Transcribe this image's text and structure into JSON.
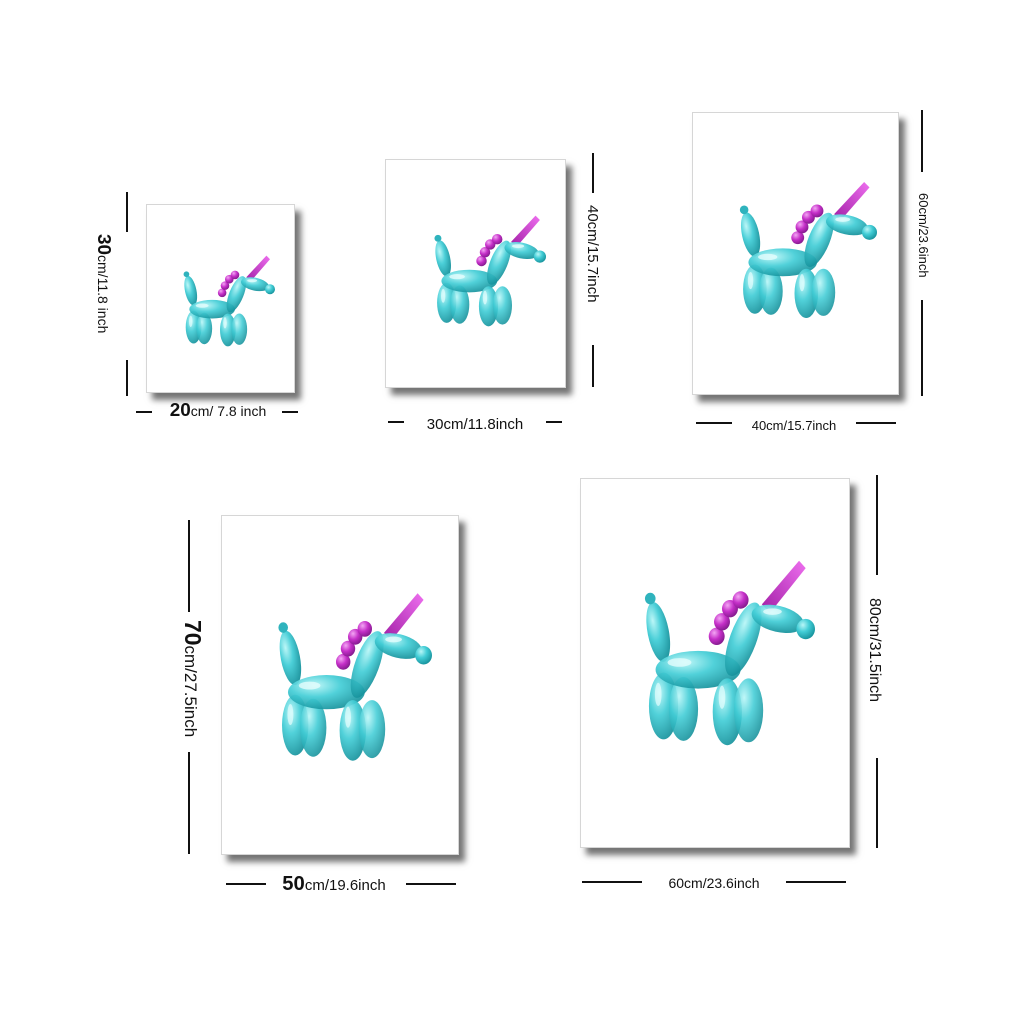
{
  "colors": {
    "balloon": "#3ec9d2",
    "balloon_dark": "#178f99",
    "balloon_light": "#9ff0f2",
    "mane": "#c02cc4",
    "horn": "#d63ad7",
    "line": "#111111"
  },
  "prints": [
    {
      "width": {
        "num": "20",
        "rest": "cm/ 7.8 inch"
      },
      "height": {
        "num": "30",
        "rest": "cm/11.8 inch"
      }
    },
    {
      "width": {
        "num": "",
        "rest": "30cm/11.8inch"
      },
      "height": {
        "num": "",
        "rest": "40cm/15.7inch"
      }
    },
    {
      "width": {
        "num": "",
        "rest": "40cm/15.7inch"
      },
      "height": {
        "num": "",
        "rest": "60cm/23.6inch"
      }
    },
    {
      "width": {
        "num": "50",
        "rest": "cm/19.6inch"
      },
      "height": {
        "num": "70",
        "rest": "cm/27.5inch"
      }
    },
    {
      "width": {
        "num": "",
        "rest": "60cm/23.6inch"
      },
      "height": {
        "num": "",
        "rest": "80cm/31.5inch"
      }
    }
  ]
}
